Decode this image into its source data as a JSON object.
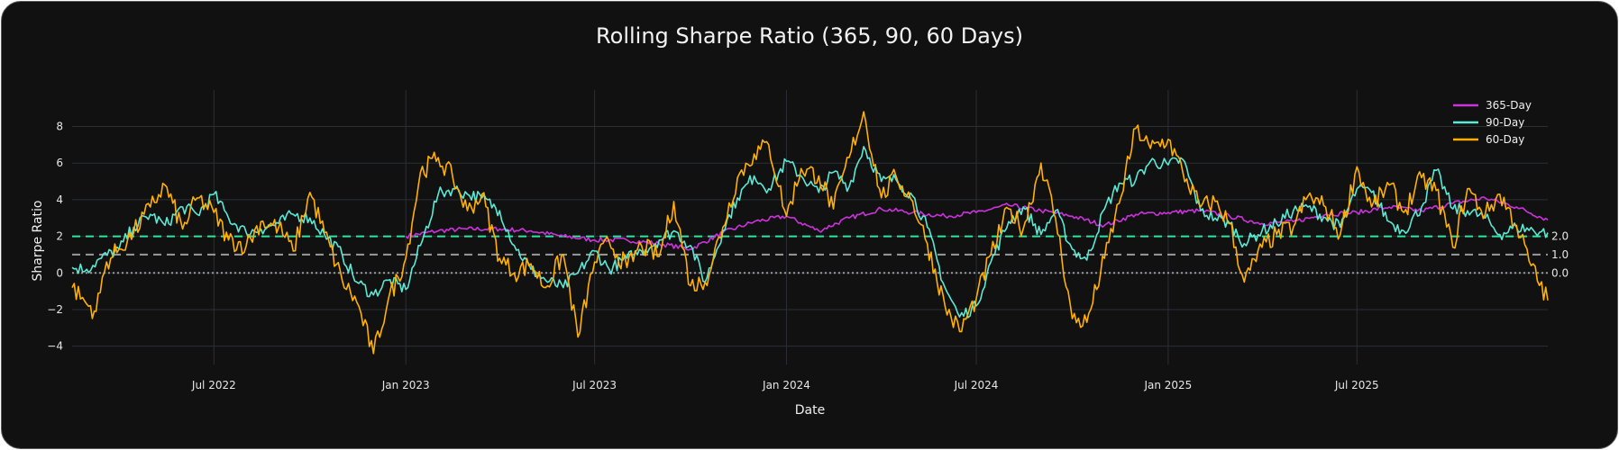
{
  "chart_data": {
    "type": "line",
    "title": "Rolling Sharpe Ratio (365, 90, 60 Days)",
    "xlabel": "Date",
    "ylabel": "Sharpe Ratio",
    "xlim": [
      "2022-02-15",
      "2025-12-31"
    ],
    "ylim": [
      -5,
      9.5
    ],
    "x_ticks": [
      "2022-07-01",
      "2023-01-01",
      "2023-07-01",
      "2024-01-01",
      "2024-07-01",
      "2025-01-01",
      "2025-07-01"
    ],
    "x_tick_labels": [
      "Jul 2022",
      "Jan 2023",
      "Jul 2023",
      "Jan 2024",
      "Jul 2024",
      "Jan 2025",
      "Jul 2025"
    ],
    "y_ticks": [
      -4,
      -2,
      0,
      2,
      4,
      6,
      8
    ],
    "y_tick_labels": [
      "−4",
      "−2",
      "0",
      "2",
      "4",
      "6",
      "8"
    ],
    "grid": true,
    "legend_position": "top-right",
    "reference_lines": [
      {
        "value": 2.0,
        "label": "2.0",
        "color": "#2ee6a0",
        "style": "dash"
      },
      {
        "value": 1.0,
        "label": "1.0",
        "color": "#9a9a9a",
        "style": "dash"
      },
      {
        "value": 0.0,
        "label": "0.0",
        "color": "#9a9a9a",
        "style": "dot"
      }
    ],
    "series": [
      {
        "name": "365-Day",
        "color": "#cc33dd",
        "points": [
          [
            "2023-01-01",
            2.0
          ],
          [
            "2023-02-01",
            2.3
          ],
          [
            "2023-03-01",
            2.4
          ],
          [
            "2023-04-01",
            2.4
          ],
          [
            "2023-05-01",
            2.3
          ],
          [
            "2023-06-01",
            2.0
          ],
          [
            "2023-07-01",
            1.8
          ],
          [
            "2023-08-01",
            1.8
          ],
          [
            "2023-09-01",
            1.6
          ],
          [
            "2023-10-01",
            1.3
          ],
          [
            "2023-11-01",
            2.2
          ],
          [
            "2023-12-01",
            2.8
          ],
          [
            "2024-01-01",
            3.1
          ],
          [
            "2024-02-01",
            2.3
          ],
          [
            "2024-03-01",
            3.0
          ],
          [
            "2024-04-01",
            3.5
          ],
          [
            "2024-05-01",
            3.3
          ],
          [
            "2024-06-01",
            3.1
          ],
          [
            "2024-07-01",
            3.3
          ],
          [
            "2024-08-01",
            3.7
          ],
          [
            "2024-09-01",
            3.4
          ],
          [
            "2024-10-01",
            3.1
          ],
          [
            "2024-11-01",
            2.6
          ],
          [
            "2024-12-01",
            3.2
          ],
          [
            "2025-01-01",
            3.3
          ],
          [
            "2025-02-01",
            3.4
          ],
          [
            "2025-03-01",
            3.1
          ],
          [
            "2025-04-01",
            2.7
          ],
          [
            "2025-05-01",
            2.8
          ],
          [
            "2025-06-01",
            3.2
          ],
          [
            "2025-07-01",
            3.3
          ],
          [
            "2025-08-01",
            3.6
          ],
          [
            "2025-09-01",
            3.4
          ],
          [
            "2025-10-01",
            3.8
          ],
          [
            "2025-11-01",
            4.1
          ],
          [
            "2025-12-01",
            3.6
          ],
          [
            "2025-12-31",
            2.9
          ]
        ]
      },
      {
        "name": "90-Day",
        "color": "#5ce8d4",
        "points": [
          [
            "2022-02-15",
            0.3
          ],
          [
            "2022-03-01",
            0.2
          ],
          [
            "2022-03-15",
            0.8
          ],
          [
            "2022-04-01",
            1.3
          ],
          [
            "2022-04-15",
            2.5
          ],
          [
            "2022-05-01",
            3.2
          ],
          [
            "2022-05-15",
            2.6
          ],
          [
            "2022-06-01",
            3.6
          ],
          [
            "2022-06-15",
            3.2
          ],
          [
            "2022-07-01",
            4.3
          ],
          [
            "2022-07-15",
            3.0
          ],
          [
            "2022-08-01",
            2.2
          ],
          [
            "2022-08-15",
            2.4
          ],
          [
            "2022-09-01",
            2.7
          ],
          [
            "2022-09-15",
            3.2
          ],
          [
            "2022-10-01",
            3.0
          ],
          [
            "2022-10-15",
            2.1
          ],
          [
            "2022-11-01",
            1.0
          ],
          [
            "2022-11-15",
            -0.5
          ],
          [
            "2022-12-01",
            -1.2
          ],
          [
            "2022-12-15",
            -0.4
          ],
          [
            "2023-01-01",
            -0.9
          ],
          [
            "2023-01-15",
            1.5
          ],
          [
            "2023-02-01",
            4.3
          ],
          [
            "2023-02-15",
            4.6
          ],
          [
            "2023-03-01",
            4.3
          ],
          [
            "2023-03-15",
            4.1
          ],
          [
            "2023-04-01",
            3.4
          ],
          [
            "2023-04-15",
            1.5
          ],
          [
            "2023-05-01",
            0.2
          ],
          [
            "2023-05-15",
            -0.4
          ],
          [
            "2023-06-01",
            -0.8
          ],
          [
            "2023-06-15",
            0.0
          ],
          [
            "2023-07-01",
            1.2
          ],
          [
            "2023-07-15",
            0.2
          ],
          [
            "2023-08-01",
            0.8
          ],
          [
            "2023-08-15",
            1.2
          ],
          [
            "2023-09-01",
            1.8
          ],
          [
            "2023-09-15",
            2.3
          ],
          [
            "2023-10-01",
            1.5
          ],
          [
            "2023-10-15",
            -0.5
          ],
          [
            "2023-11-01",
            2.3
          ],
          [
            "2023-11-15",
            4.1
          ],
          [
            "2023-12-01",
            5.3
          ],
          [
            "2023-12-15",
            4.6
          ],
          [
            "2024-01-01",
            6.1
          ],
          [
            "2024-01-15",
            5.3
          ],
          [
            "2024-02-01",
            4.4
          ],
          [
            "2024-02-15",
            5.5
          ],
          [
            "2024-03-01",
            4.7
          ],
          [
            "2024-03-15",
            6.9
          ],
          [
            "2024-04-01",
            5.0
          ],
          [
            "2024-04-15",
            5.1
          ],
          [
            "2024-05-01",
            4.2
          ],
          [
            "2024-05-15",
            2.5
          ],
          [
            "2024-06-01",
            -0.8
          ],
          [
            "2024-06-15",
            -2.4
          ],
          [
            "2024-07-01",
            -1.8
          ],
          [
            "2024-07-15",
            0.6
          ],
          [
            "2024-08-01",
            2.8
          ],
          [
            "2024-08-15",
            3.6
          ],
          [
            "2024-09-01",
            2.1
          ],
          [
            "2024-09-15",
            3.4
          ],
          [
            "2024-10-01",
            1.3
          ],
          [
            "2024-10-15",
            0.7
          ],
          [
            "2024-11-01",
            3.5
          ],
          [
            "2024-11-15",
            4.9
          ],
          [
            "2024-12-01",
            5.1
          ],
          [
            "2024-12-15",
            6.1
          ],
          [
            "2025-01-01",
            5.9
          ],
          [
            "2025-01-15",
            6.2
          ],
          [
            "2025-02-01",
            3.4
          ],
          [
            "2025-02-15",
            3.0
          ],
          [
            "2025-03-01",
            2.7
          ],
          [
            "2025-03-15",
            1.6
          ],
          [
            "2025-04-01",
            2.3
          ],
          [
            "2025-04-15",
            2.7
          ],
          [
            "2025-05-01",
            3.4
          ],
          [
            "2025-05-15",
            3.6
          ],
          [
            "2025-06-01",
            3.0
          ],
          [
            "2025-06-15",
            2.5
          ],
          [
            "2025-07-01",
            4.6
          ],
          [
            "2025-07-15",
            4.4
          ],
          [
            "2025-08-01",
            2.8
          ],
          [
            "2025-08-15",
            2.3
          ],
          [
            "2025-09-01",
            3.6
          ],
          [
            "2025-09-15",
            5.6
          ],
          [
            "2025-10-01",
            3.5
          ],
          [
            "2025-10-15",
            3.4
          ],
          [
            "2025-11-01",
            3.0
          ],
          [
            "2025-11-15",
            2.1
          ],
          [
            "2025-12-01",
            2.5
          ],
          [
            "2025-12-31",
            2.2
          ]
        ]
      },
      {
        "name": "60-Day",
        "color": "#ffb000",
        "points": [
          [
            "2022-02-15",
            -0.8
          ],
          [
            "2022-03-01",
            -1.7
          ],
          [
            "2022-03-10",
            -2.1
          ],
          [
            "2022-03-20",
            0.6
          ],
          [
            "2022-04-01",
            1.3
          ],
          [
            "2022-04-15",
            2.2
          ],
          [
            "2022-05-01",
            3.6
          ],
          [
            "2022-05-15",
            4.8
          ],
          [
            "2022-06-01",
            2.4
          ],
          [
            "2022-06-15",
            4.1
          ],
          [
            "2022-07-01",
            3.3
          ],
          [
            "2022-07-15",
            1.8
          ],
          [
            "2022-08-01",
            1.5
          ],
          [
            "2022-08-15",
            2.8
          ],
          [
            "2022-09-01",
            2.5
          ],
          [
            "2022-09-15",
            1.2
          ],
          [
            "2022-10-01",
            4.4
          ],
          [
            "2022-10-15",
            2.2
          ],
          [
            "2022-11-01",
            -0.4
          ],
          [
            "2022-11-15",
            -1.6
          ],
          [
            "2022-12-01",
            -4.4
          ],
          [
            "2022-12-15",
            -1.5
          ],
          [
            "2023-01-01",
            0.8
          ],
          [
            "2023-01-15",
            5.5
          ],
          [
            "2023-02-01",
            6.3
          ],
          [
            "2023-02-15",
            5.2
          ],
          [
            "2023-03-01",
            3.4
          ],
          [
            "2023-03-15",
            4.3
          ],
          [
            "2023-04-01",
            0.8
          ],
          [
            "2023-04-15",
            0.0
          ],
          [
            "2023-05-01",
            0.5
          ],
          [
            "2023-05-15",
            -0.8
          ],
          [
            "2023-06-01",
            1.0
          ],
          [
            "2023-06-15",
            -3.5
          ],
          [
            "2023-07-01",
            0.6
          ],
          [
            "2023-07-15",
            1.7
          ],
          [
            "2023-08-01",
            0.3
          ],
          [
            "2023-08-15",
            1.5
          ],
          [
            "2023-09-01",
            0.9
          ],
          [
            "2023-09-15",
            3.9
          ],
          [
            "2023-10-01",
            -0.7
          ],
          [
            "2023-10-15",
            -0.5
          ],
          [
            "2023-11-01",
            2.5
          ],
          [
            "2023-11-15",
            5.2
          ],
          [
            "2023-12-01",
            6.5
          ],
          [
            "2023-12-15",
            7.0
          ],
          [
            "2024-01-01",
            3.1
          ],
          [
            "2024-01-15",
            5.7
          ],
          [
            "2024-02-01",
            5.3
          ],
          [
            "2024-02-15",
            3.5
          ],
          [
            "2024-03-01",
            6.3
          ],
          [
            "2024-03-15",
            8.8
          ],
          [
            "2024-04-01",
            4.1
          ],
          [
            "2024-04-15",
            5.3
          ],
          [
            "2024-05-01",
            3.9
          ],
          [
            "2024-05-15",
            1.6
          ],
          [
            "2024-06-01",
            -1.8
          ],
          [
            "2024-06-15",
            -3.2
          ],
          [
            "2024-07-01",
            -1.4
          ],
          [
            "2024-07-15",
            1.0
          ],
          [
            "2024-08-01",
            3.5
          ],
          [
            "2024-08-15",
            2.4
          ],
          [
            "2024-09-01",
            6.0
          ],
          [
            "2024-09-15",
            3.0
          ],
          [
            "2024-10-01",
            -2.5
          ],
          [
            "2024-10-15",
            -2.7
          ],
          [
            "2024-11-01",
            0.8
          ],
          [
            "2024-11-15",
            3.8
          ],
          [
            "2024-12-01",
            7.9
          ],
          [
            "2024-12-15",
            6.8
          ],
          [
            "2025-01-01",
            7.3
          ],
          [
            "2025-01-15",
            5.5
          ],
          [
            "2025-02-01",
            3.6
          ],
          [
            "2025-02-15",
            3.9
          ],
          [
            "2025-03-01",
            2.7
          ],
          [
            "2025-03-15",
            -0.5
          ],
          [
            "2025-04-01",
            1.4
          ],
          [
            "2025-04-15",
            2.1
          ],
          [
            "2025-05-01",
            2.5
          ],
          [
            "2025-05-15",
            4.2
          ],
          [
            "2025-06-01",
            3.6
          ],
          [
            "2025-06-15",
            2.1
          ],
          [
            "2025-07-01",
            5.8
          ],
          [
            "2025-07-15",
            3.6
          ],
          [
            "2025-08-01",
            4.8
          ],
          [
            "2025-08-15",
            3.3
          ],
          [
            "2025-09-01",
            5.2
          ],
          [
            "2025-09-15",
            4.5
          ],
          [
            "2025-10-01",
            1.4
          ],
          [
            "2025-10-15",
            4.6
          ],
          [
            "2025-11-01",
            3.2
          ],
          [
            "2025-11-15",
            4.3
          ],
          [
            "2025-12-01",
            2.6
          ],
          [
            "2025-12-15",
            0.4
          ],
          [
            "2025-12-31",
            -1.5
          ]
        ]
      }
    ]
  }
}
